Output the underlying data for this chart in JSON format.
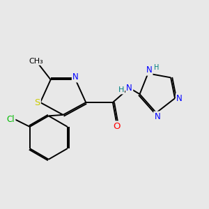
{
  "bg_color": "#e8e8e8",
  "atom_colors": {
    "C": "#000000",
    "N": "#0000ff",
    "O": "#ff0000",
    "S": "#cccc00",
    "Cl": "#00bb00",
    "H": "#008080"
  },
  "bond_color": "#000000",
  "font_size": 8.5,
  "fig_size": [
    3.0,
    3.0
  ],
  "dpi": 100,
  "lw": 1.4
}
